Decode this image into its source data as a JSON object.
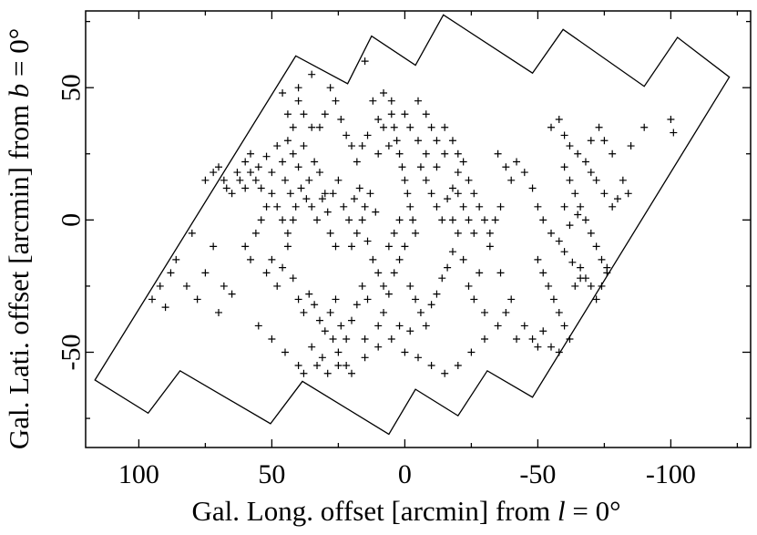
{
  "chart_data": {
    "type": "scatter",
    "marker": "+",
    "colors": {
      "ink": "#000000",
      "background": "#ffffff"
    },
    "xlabel": {
      "prefix": "Gal. Long. offset [arcmin] from ",
      "var": "l",
      "suffix": " = 0°"
    },
    "ylabel": {
      "prefix": "Gal. Lati. offset [arcmin] from ",
      "var": "b",
      "suffix": " = 0°"
    },
    "xlim": [
      120,
      -130
    ],
    "ylim": [
      -86,
      79
    ],
    "x_inverted": true,
    "xticks": [
      {
        "value": 100,
        "label": "100"
      },
      {
        "value": 50,
        "label": "50"
      },
      {
        "value": 0,
        "label": "0"
      },
      {
        "value": -50,
        "label": "-50"
      },
      {
        "value": -100,
        "label": "-100"
      }
    ],
    "yticks": [
      {
        "value": 50,
        "label": "50"
      },
      {
        "value": 0,
        "label": "0"
      },
      {
        "value": -50,
        "label": "-50"
      }
    ],
    "survey_boundary": [
      [
        116.5,
        -60.5
      ],
      [
        96.5,
        -73
      ],
      [
        84.5,
        -57
      ],
      [
        50.5,
        -77
      ],
      [
        38.5,
        -61
      ],
      [
        6,
        -81
      ],
      [
        -4,
        -64
      ],
      [
        -20,
        -74
      ],
      [
        -31,
        -57
      ],
      [
        -48,
        -67
      ],
      [
        -122,
        54
      ],
      [
        -102.5,
        69
      ],
      [
        -90,
        50.5
      ],
      [
        -59.5,
        72
      ],
      [
        -48,
        55.5
      ],
      [
        -14.5,
        77.5
      ],
      [
        -4,
        58.5
      ],
      [
        12.5,
        69.5
      ],
      [
        21.5,
        51.5
      ],
      [
        41,
        62
      ],
      [
        116.5,
        -60.5
      ]
    ],
    "points": [
      [
        95,
        -30
      ],
      [
        92,
        -25
      ],
      [
        88,
        -20
      ],
      [
        90,
        -33
      ],
      [
        86,
        -15
      ],
      [
        82,
        -25
      ],
      [
        80,
        -5
      ],
      [
        78,
        -30
      ],
      [
        75,
        -20
      ],
      [
        72,
        -10
      ],
      [
        70,
        -35
      ],
      [
        68,
        -25
      ],
      [
        65,
        -28
      ],
      [
        67,
        12
      ],
      [
        63,
        18
      ],
      [
        60,
        22
      ],
      [
        58,
        25
      ],
      [
        55,
        20
      ],
      [
        52,
        24
      ],
      [
        50,
        18
      ],
      [
        48,
        28
      ],
      [
        46,
        22
      ],
      [
        44,
        30
      ],
      [
        42,
        25
      ],
      [
        40,
        20
      ],
      [
        38,
        28
      ],
      [
        36,
        15
      ],
      [
        34,
        22
      ],
      [
        32,
        18
      ],
      [
        30,
        10
      ],
      [
        45,
        15
      ],
      [
        43,
        10
      ],
      [
        41,
        5
      ],
      [
        39,
        12
      ],
      [
        37,
        8
      ],
      [
        35,
        5
      ],
      [
        33,
        0
      ],
      [
        31,
        8
      ],
      [
        29,
        3
      ],
      [
        27,
        10
      ],
      [
        25,
        15
      ],
      [
        23,
        5
      ],
      [
        21,
        0
      ],
      [
        19,
        8
      ],
      [
        17,
        12
      ],
      [
        15,
        5
      ],
      [
        13,
        10
      ],
      [
        11,
        3
      ],
      [
        28,
        -5
      ],
      [
        26,
        -10
      ],
      [
        52,
        -20
      ],
      [
        50,
        -15
      ],
      [
        48,
        -25
      ],
      [
        46,
        -18
      ],
      [
        44,
        -10
      ],
      [
        42,
        -22
      ],
      [
        40,
        -30
      ],
      [
        38,
        -35
      ],
      [
        36,
        -28
      ],
      [
        34,
        -32
      ],
      [
        32,
        -38
      ],
      [
        30,
        -42
      ],
      [
        28,
        -35
      ],
      [
        26,
        -30
      ],
      [
        24,
        -40
      ],
      [
        22,
        -45
      ],
      [
        20,
        -38
      ],
      [
        18,
        -32
      ],
      [
        16,
        -25
      ],
      [
        14,
        -30
      ],
      [
        35,
        -48
      ],
      [
        33,
        -55
      ],
      [
        31,
        -52
      ],
      [
        29,
        -58
      ],
      [
        27,
        -45
      ],
      [
        25,
        -50
      ],
      [
        22,
        -55
      ],
      [
        15,
        -45
      ],
      [
        10,
        -40
      ],
      [
        8,
        -35
      ],
      [
        6,
        -28
      ],
      [
        4,
        -20
      ],
      [
        2,
        -15
      ],
      [
        0,
        -10
      ],
      [
        -2,
        -25
      ],
      [
        -4,
        -30
      ],
      [
        -6,
        -35
      ],
      [
        -8,
        -40
      ],
      [
        -10,
        -32
      ],
      [
        -12,
        -28
      ],
      [
        -14,
        -22
      ],
      [
        -16,
        -18
      ],
      [
        -18,
        -12
      ],
      [
        -20,
        -5
      ],
      [
        -22,
        -15
      ],
      [
        -24,
        -25
      ],
      [
        -26,
        -30
      ],
      [
        -28,
        -20
      ],
      [
        -30,
        -35
      ],
      [
        -32,
        -10
      ],
      [
        5,
        40
      ],
      [
        4,
        35
      ],
      [
        3,
        30
      ],
      [
        2,
        25
      ],
      [
        1,
        20
      ],
      [
        0,
        15
      ],
      [
        -1,
        10
      ],
      [
        -2,
        5
      ],
      [
        -3,
        0
      ],
      [
        -4,
        -5
      ],
      [
        8,
        35
      ],
      [
        6,
        28
      ],
      [
        10,
        25
      ],
      [
        -6,
        20
      ],
      [
        -8,
        15
      ],
      [
        -10,
        10
      ],
      [
        -12,
        5
      ],
      [
        -14,
        0
      ],
      [
        -16,
        8
      ],
      [
        -18,
        12
      ],
      [
        -20,
        18
      ],
      [
        -22,
        22
      ],
      [
        -24,
        15
      ],
      [
        -26,
        10
      ],
      [
        -15,
        25
      ],
      [
        -12,
        20
      ],
      [
        -8,
        25
      ],
      [
        -5,
        30
      ],
      [
        -2,
        35
      ],
      [
        0,
        40
      ],
      [
        12,
        45
      ],
      [
        10,
        38
      ],
      [
        14,
        32
      ],
      [
        16,
        28
      ],
      [
        18,
        22
      ],
      [
        20,
        28
      ],
      [
        22,
        32
      ],
      [
        24,
        38
      ],
      [
        26,
        45
      ],
      [
        28,
        50
      ],
      [
        30,
        40
      ],
      [
        32,
        35
      ],
      [
        35,
        35
      ],
      [
        38,
        40
      ],
      [
        40,
        45
      ],
      [
        42,
        35
      ],
      [
        44,
        40
      ],
      [
        46,
        48
      ],
      [
        40,
        50
      ],
      [
        35,
        55
      ],
      [
        -55,
        35
      ],
      [
        -58,
        38
      ],
      [
        -60,
        32
      ],
      [
        -62,
        28
      ],
      [
        -65,
        25
      ],
      [
        -68,
        22
      ],
      [
        -70,
        18
      ],
      [
        -72,
        15
      ],
      [
        -75,
        10
      ],
      [
        -78,
        5
      ],
      [
        -80,
        8
      ],
      [
        -60,
        20
      ],
      [
        -62,
        15
      ],
      [
        -64,
        10
      ],
      [
        -66,
        5
      ],
      [
        -68,
        0
      ],
      [
        -70,
        -5
      ],
      [
        -72,
        -10
      ],
      [
        -74,
        -15
      ],
      [
        -76,
        -20
      ],
      [
        -50,
        -15
      ],
      [
        -52,
        -20
      ],
      [
        -54,
        -25
      ],
      [
        -56,
        -30
      ],
      [
        -58,
        -35
      ],
      [
        -60,
        -40
      ],
      [
        -62,
        -45
      ],
      [
        -64,
        -25
      ],
      [
        -66,
        -18
      ],
      [
        -68,
        -22
      ],
      [
        -45,
        -40
      ],
      [
        -48,
        -45
      ],
      [
        -50,
        -48
      ],
      [
        -52,
        -42
      ],
      [
        -55,
        -48
      ],
      [
        -58,
        -50
      ],
      [
        -42,
        -45
      ],
      [
        -40,
        -30
      ],
      [
        -38,
        -35
      ],
      [
        -36,
        -20
      ],
      [
        -35,
        25
      ],
      [
        -38,
        20
      ],
      [
        -40,
        15
      ],
      [
        -42,
        22
      ],
      [
        -45,
        18
      ],
      [
        -48,
        12
      ],
      [
        -50,
        5
      ],
      [
        -52,
        0
      ],
      [
        -55,
        -5
      ],
      [
        -58,
        -8
      ],
      [
        -60,
        -12
      ],
      [
        -63,
        -16
      ],
      [
        -66,
        -22
      ],
      [
        -70,
        -25
      ],
      [
        -72,
        -30
      ],
      [
        -74,
        -25
      ],
      [
        -76,
        -18
      ],
      [
        -65,
        2
      ],
      [
        -62,
        -2
      ],
      [
        -60,
        5
      ],
      [
        -100,
        38
      ],
      [
        -101,
        33
      ],
      [
        -85,
        28
      ],
      [
        -90,
        35
      ],
      [
        -82,
        15
      ],
      [
        -84,
        10
      ],
      [
        -78,
        25
      ],
      [
        -75,
        30
      ],
      [
        -73,
        35
      ],
      [
        -70,
        30
      ],
      [
        15,
        60
      ],
      [
        8,
        48
      ],
      [
        5,
        45
      ],
      [
        -5,
        45
      ],
      [
        -8,
        40
      ],
      [
        -10,
        35
      ],
      [
        -12,
        30
      ],
      [
        -15,
        35
      ],
      [
        -18,
        30
      ],
      [
        -20,
        25
      ],
      [
        55,
        -40
      ],
      [
        50,
        -45
      ],
      [
        45,
        -50
      ],
      [
        40,
        -55
      ],
      [
        38,
        -58
      ],
      [
        25,
        -55
      ],
      [
        20,
        -58
      ],
      [
        15,
        -52
      ],
      [
        10,
        -48
      ],
      [
        5,
        -45
      ],
      [
        0,
        -50
      ],
      [
        -5,
        -52
      ],
      [
        -10,
        -55
      ],
      [
        -15,
        -58
      ],
      [
        -20,
        -55
      ],
      [
        -25,
        -50
      ],
      [
        -30,
        -45
      ],
      [
        -35,
        -40
      ],
      [
        2,
        -40
      ],
      [
        -2,
        -42
      ],
      [
        60,
        -10
      ],
      [
        58,
        -15
      ],
      [
        56,
        -5
      ],
      [
        54,
        0
      ],
      [
        52,
        5
      ],
      [
        50,
        10
      ],
      [
        48,
        5
      ],
      [
        46,
        0
      ],
      [
        44,
        -5
      ],
      [
        42,
        0
      ],
      [
        20,
        -10
      ],
      [
        18,
        -5
      ],
      [
        16,
        0
      ],
      [
        14,
        -8
      ],
      [
        12,
        -15
      ],
      [
        10,
        -20
      ],
      [
        8,
        -25
      ],
      [
        6,
        -10
      ],
      [
        4,
        -5
      ],
      [
        2,
        0
      ],
      [
        -28,
        5
      ],
      [
        -30,
        0
      ],
      [
        -32,
        -5
      ],
      [
        -34,
        0
      ],
      [
        -36,
        5
      ],
      [
        -26,
        -5
      ],
      [
        -24,
        0
      ],
      [
        -22,
        5
      ],
      [
        -20,
        10
      ],
      [
        -18,
        0
      ],
      [
        75,
        15
      ],
      [
        72,
        18
      ],
      [
        70,
        20
      ],
      [
        68,
        15
      ],
      [
        65,
        10
      ],
      [
        62,
        15
      ],
      [
        60,
        12
      ],
      [
        58,
        18
      ],
      [
        56,
        15
      ],
      [
        54,
        12
      ]
    ]
  }
}
